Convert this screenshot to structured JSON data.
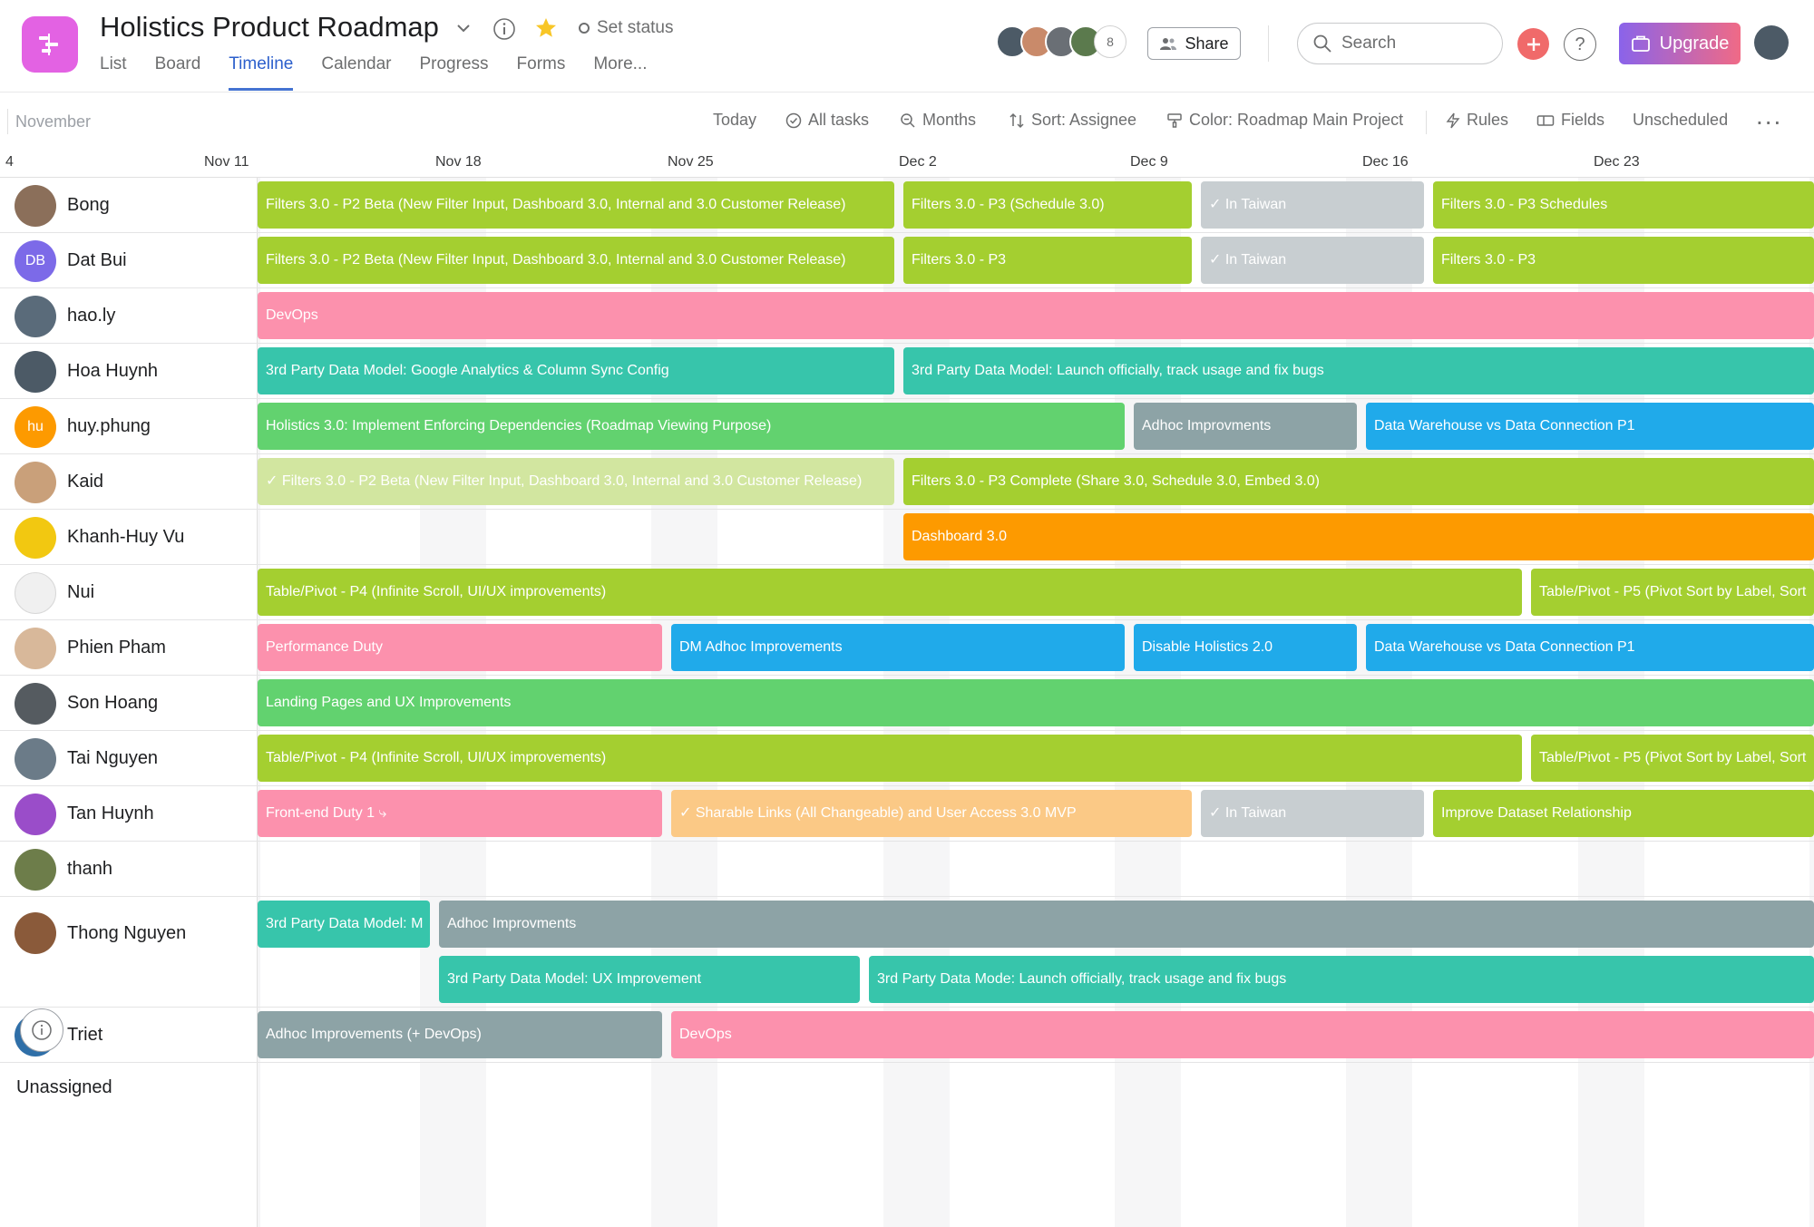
{
  "project": {
    "title": "Holistics Product Roadmap",
    "icon": "roadmap-icon",
    "set_status": "Set status",
    "color": "#e362e3"
  },
  "nav": {
    "tabs": [
      "List",
      "Board",
      "Timeline",
      "Calendar",
      "Progress",
      "Forms",
      "More..."
    ],
    "active": "Timeline"
  },
  "header": {
    "member_count": "8",
    "share_label": "Share",
    "search_placeholder": "Search",
    "help_label": "?",
    "upgrade_label": "Upgrade"
  },
  "toolbar": {
    "month": "November",
    "today": "Today",
    "all_tasks": "All tasks",
    "months": "Months",
    "sort": "Sort: Assignee",
    "color": "Color: Roadmap Main Project",
    "rules": "Rules",
    "fields": "Fields",
    "unscheduled": "Unscheduled",
    "more": "..."
  },
  "dates": [
    "4",
    "Nov 11",
    "Nov 18",
    "Nov 25",
    "Dec 2",
    "Dec 9",
    "Dec 16",
    "Dec 23"
  ],
  "colors": {
    "lime": "#a4cf30",
    "green": "#62d26f",
    "teal": "#37c5ab",
    "pink": "#fc91ad",
    "blue": "#20aaea",
    "gray": "#8da3a6",
    "orange": "#fd9a00",
    "lightgray": "#c8ced1",
    "peach": "#fbc986",
    "palelime": "#d2e6a0"
  },
  "people": [
    {
      "name": "Bong",
      "avatar": "photo",
      "avatar_color": "#8b6f5a"
    },
    {
      "name": "Dat Bui",
      "avatar": "DB",
      "avatar_color": "#7c6ae8"
    },
    {
      "name": "hao.ly",
      "avatar": "photo",
      "avatar_color": "#5a6b7a"
    },
    {
      "name": "Hoa Huynh",
      "avatar": "photo",
      "avatar_color": "#4c5a66"
    },
    {
      "name": "huy.phung",
      "avatar": "hu",
      "avatar_color": "#fd9a00"
    },
    {
      "name": "Kaid",
      "avatar": "photo",
      "avatar_color": "#c9a07a"
    },
    {
      "name": "Khanh-Huy Vu",
      "avatar": "photo",
      "avatar_color": "#f2c811"
    },
    {
      "name": "Nui",
      "avatar": "photo",
      "avatar_color": "#f0f0f0"
    },
    {
      "name": "Phien Pham",
      "avatar": "photo",
      "avatar_color": "#d8b89a"
    },
    {
      "name": "Son Hoang",
      "avatar": "photo",
      "avatar_color": "#555b60"
    },
    {
      "name": "Tai Nguyen",
      "avatar": "photo",
      "avatar_color": "#6b7b88"
    },
    {
      "name": "Tan Huynh",
      "avatar": "photo",
      "avatar_color": "#9a4dc9"
    },
    {
      "name": "thanh",
      "avatar": "photo",
      "avatar_color": "#6d7d4a"
    },
    {
      "name": "Thong Nguyen",
      "avatar": "photo",
      "avatar_color": "#8a5a3a"
    },
    {
      "name": "Triet",
      "avatar": "photo",
      "avatar_color": "#2f6fa8"
    }
  ],
  "unassigned": "Unassigned",
  "tasks": [
    {
      "row": 0,
      "lane": 0,
      "label": "Filters 3.0 - P2 Beta (New Filter Input, Dashboard 3.0, Internal and 3.0 Customer Release)",
      "color": "lime"
    },
    {
      "row": 0,
      "lane": 0,
      "label": "Filters 3.0 - P3 (Schedule 3.0)",
      "color": "lime"
    },
    {
      "row": 0,
      "lane": 0,
      "label": "✓ In Taiwan",
      "color": "lightgray"
    },
    {
      "row": 0,
      "lane": 0,
      "label": "Filters 3.0 - P3 Schedules",
      "color": "lime"
    },
    {
      "row": 1,
      "lane": 0,
      "label": "Filters 3.0 - P2 Beta (New Filter Input, Dashboard 3.0, Internal and 3.0 Customer Release)",
      "color": "lime"
    },
    {
      "row": 1,
      "lane": 0,
      "label": "Filters 3.0 - P3",
      "color": "lime"
    },
    {
      "row": 1,
      "lane": 0,
      "label": "✓ In Taiwan",
      "color": "lightgray"
    },
    {
      "row": 1,
      "lane": 0,
      "label": "Filters 3.0 - P3",
      "color": "lime"
    },
    {
      "row": 2,
      "lane": 0,
      "label": "DevOps",
      "color": "pink"
    },
    {
      "row": 3,
      "lane": 0,
      "label": "3rd Party Data Model: Google Analytics & Column Sync Config",
      "color": "teal"
    },
    {
      "row": 3,
      "lane": 0,
      "label": "3rd Party Data Model: Launch officially, track usage and fix bugs",
      "color": "teal"
    },
    {
      "row": 4,
      "lane": 0,
      "label": "Holistics 3.0: Implement Enforcing Dependencies (Roadmap Viewing Purpose)",
      "color": "green"
    },
    {
      "row": 4,
      "lane": 0,
      "label": "Adhoc Improvments",
      "color": "gray"
    },
    {
      "row": 4,
      "lane": 0,
      "label": "Data Warehouse vs Data Connection P1",
      "color": "blue"
    },
    {
      "row": 5,
      "lane": 0,
      "label": "✓ Filters 3.0 - P2 Beta (New Filter Input, Dashboard 3.0, Internal and 3.0 Customer Release)",
      "color": "palelime"
    },
    {
      "row": 5,
      "lane": 0,
      "label": "Filters 3.0 - P3 Complete (Share 3.0, Schedule 3.0, Embed 3.0)",
      "color": "lime"
    },
    {
      "row": 6,
      "lane": 0,
      "label": "Dashboard 3.0",
      "color": "orange"
    },
    {
      "row": 7,
      "lane": 0,
      "label": "Table/Pivot - P4 (Infinite Scroll, UI/UX improvements)",
      "color": "lime"
    },
    {
      "row": 7,
      "lane": 0,
      "label": "Table/Pivot - P5 (Pivot Sort by Label, Sort",
      "color": "lime"
    },
    {
      "row": 8,
      "lane": 0,
      "label": "Performance Duty",
      "color": "pink"
    },
    {
      "row": 8,
      "lane": 0,
      "label": "DM Adhoc Improvements",
      "color": "blue"
    },
    {
      "row": 8,
      "lane": 0,
      "label": "Disable Holistics 2.0",
      "color": "blue"
    },
    {
      "row": 8,
      "lane": 0,
      "label": "Data Warehouse vs Data Connection P1",
      "color": "blue"
    },
    {
      "row": 9,
      "lane": 0,
      "label": "Landing Pages and UX Improvements",
      "color": "green"
    },
    {
      "row": 10,
      "lane": 0,
      "label": "Table/Pivot - P4 (Infinite Scroll, UI/UX improvements)",
      "color": "lime"
    },
    {
      "row": 10,
      "lane": 0,
      "label": "Table/Pivot - P5 (Pivot Sort by Label, Sort",
      "color": "lime"
    },
    {
      "row": 11,
      "lane": 0,
      "label": "Front-end Duty  1 ⤷",
      "color": "pink"
    },
    {
      "row": 11,
      "lane": 0,
      "label": "✓ Sharable Links (All Changeable) and User Access 3.0 MVP",
      "color": "peach"
    },
    {
      "row": 11,
      "lane": 0,
      "label": "✓ In Taiwan",
      "color": "lightgray"
    },
    {
      "row": 11,
      "lane": 0,
      "label": "Improve Dataset Relationship",
      "color": "lime"
    },
    {
      "row": 13,
      "lane": 0,
      "label": "3rd Party Data Model: M",
      "color": "teal"
    },
    {
      "row": 13,
      "lane": 0,
      "label": "Adhoc Improvments",
      "color": "gray"
    },
    {
      "row": 13,
      "lane": 1,
      "label": "3rd Party Data Model: UX Improvement",
      "color": "teal"
    },
    {
      "row": 13,
      "lane": 1,
      "label": "3rd Party Data Mode: Launch officially, track usage and fix bugs",
      "color": "teal"
    },
    {
      "row": 14,
      "lane": 0,
      "label": "Adhoc Improvements (+ DevOps)",
      "color": "gray"
    },
    {
      "row": 14,
      "lane": 0,
      "label": "DevOps",
      "color": "pink"
    }
  ]
}
